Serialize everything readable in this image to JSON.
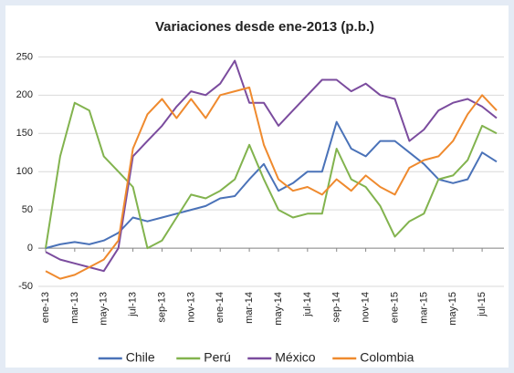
{
  "chart_data": {
    "type": "line",
    "title": "Variaciones desde ene-2013 (p.b.)",
    "categories": [
      "ene-13",
      null,
      "mar-13",
      null,
      "may-13",
      null,
      "jul-13",
      null,
      "sep-13",
      null,
      "nov-13",
      null,
      "ene-14",
      null,
      "mar-14",
      null,
      "may-14",
      null,
      "jul-14",
      null,
      "sep-14",
      null,
      "nov-14",
      null,
      "ene-15",
      null,
      "mar-15",
      null,
      "may-15",
      null,
      "jul-15",
      null
    ],
    "series": [
      {
        "name": "Chile",
        "color": "#4a72b8",
        "values": [
          0,
          5,
          8,
          5,
          10,
          20,
          40,
          35,
          40,
          45,
          50,
          55,
          65,
          68,
          90,
          110,
          75,
          85,
          100,
          100,
          165,
          130,
          120,
          140,
          140,
          125,
          110,
          90,
          85,
          90,
          125,
          113
        ]
      },
      {
        "name": "Perú",
        "color": "#82b34e",
        "values": [
          0,
          120,
          190,
          180,
          120,
          100,
          80,
          0,
          10,
          40,
          70,
          65,
          75,
          90,
          135,
          90,
          50,
          40,
          45,
          45,
          130,
          90,
          80,
          55,
          15,
          35,
          45,
          90,
          95,
          115,
          160,
          150
        ]
      },
      {
        "name": "México",
        "color": "#7b4c9e",
        "values": [
          -5,
          -15,
          -20,
          -25,
          -30,
          0,
          120,
          140,
          160,
          185,
          205,
          200,
          215,
          245,
          190,
          190,
          160,
          180,
          200,
          220,
          220,
          205,
          215,
          200,
          195,
          140,
          155,
          180,
          190,
          195,
          185,
          170
        ]
      },
      {
        "name": "Colombia",
        "color": "#ef8a2e",
        "values": [
          -30,
          -40,
          -35,
          -25,
          -15,
          10,
          130,
          175,
          195,
          170,
          195,
          170,
          200,
          205,
          210,
          135,
          90,
          75,
          80,
          70,
          90,
          75,
          95,
          80,
          70,
          105,
          115,
          120,
          140,
          175,
          200,
          180
        ]
      }
    ],
    "ylim": [
      -50,
      260
    ],
    "yticks": [
      -50,
      0,
      50,
      100,
      150,
      200,
      250
    ],
    "grid": true,
    "legend": "bottom"
  }
}
